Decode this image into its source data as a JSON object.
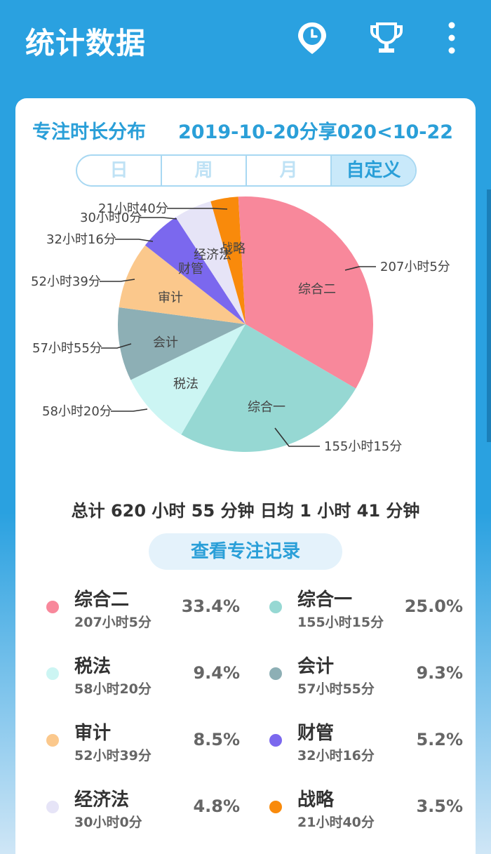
{
  "appbar": {
    "title": "统计数据"
  },
  "card": {
    "title": "专注时长分布",
    "date_range": "2019-10-20分享020<10-22",
    "segments": [
      "日",
      "周",
      "月",
      "自定义"
    ],
    "active_segment": "自定义",
    "total_text": "总计 620 小时 55 分钟 日均 1 小时 41 分钟",
    "view_button": "查看专注记录"
  },
  "chart_data": {
    "type": "pie",
    "slices": [
      {
        "name": "综合二",
        "duration": "207小时5分",
        "percent": 33.4,
        "color": "#f8889b"
      },
      {
        "name": "综合一",
        "duration": "155小时15分",
        "percent": 25.0,
        "color": "#96d8d3"
      },
      {
        "name": "税法",
        "duration": "58小时20分",
        "percent": 9.4,
        "color": "#ccf5f3"
      },
      {
        "name": "会计",
        "duration": "57小时55分",
        "percent": 9.3,
        "color": "#8dafb5"
      },
      {
        "name": "审计",
        "duration": "52小时39分",
        "percent": 8.5,
        "color": "#fbc88c"
      },
      {
        "name": "财管",
        "duration": "32小时16分",
        "percent": 5.2,
        "color": "#7b68ee"
      },
      {
        "name": "经济法",
        "duration": "30小时0分",
        "percent": 4.8,
        "color": "#e6e4f7"
      },
      {
        "name": "战略",
        "duration": "21小时40分",
        "percent": 3.5,
        "color": "#f98a0b"
      },
      {
        "name": "",
        "duration": "",
        "percent": 0.9,
        "color": "#f8889b"
      }
    ]
  },
  "legend": [
    {
      "name": "综合二",
      "time": "207小时5分",
      "pct": "33.4%",
      "color": "#f8889b"
    },
    {
      "name": "综合一",
      "time": "155小时15分",
      "pct": "25.0%",
      "color": "#96d8d3"
    },
    {
      "name": "税法",
      "time": "58小时20分",
      "pct": "9.4%",
      "color": "#ccf5f3"
    },
    {
      "name": "会计",
      "time": "57小时55分",
      "pct": "9.3%",
      "color": "#8dafb5"
    },
    {
      "name": "审计",
      "time": "52小时39分",
      "pct": "8.5%",
      "color": "#fbc88c"
    },
    {
      "name": "财管",
      "time": "32小时16分",
      "pct": "5.2%",
      "color": "#7b68ee"
    },
    {
      "name": "经济法",
      "time": "30小时0分",
      "pct": "4.8%",
      "color": "#e6e4f7"
    },
    {
      "name": "战略",
      "time": "21小时40分",
      "pct": "3.5%",
      "color": "#f98a0b"
    }
  ],
  "icons": {
    "clock": "clock-pin-icon",
    "trophy": "trophy-icon",
    "menu": "more-vert-icon"
  }
}
